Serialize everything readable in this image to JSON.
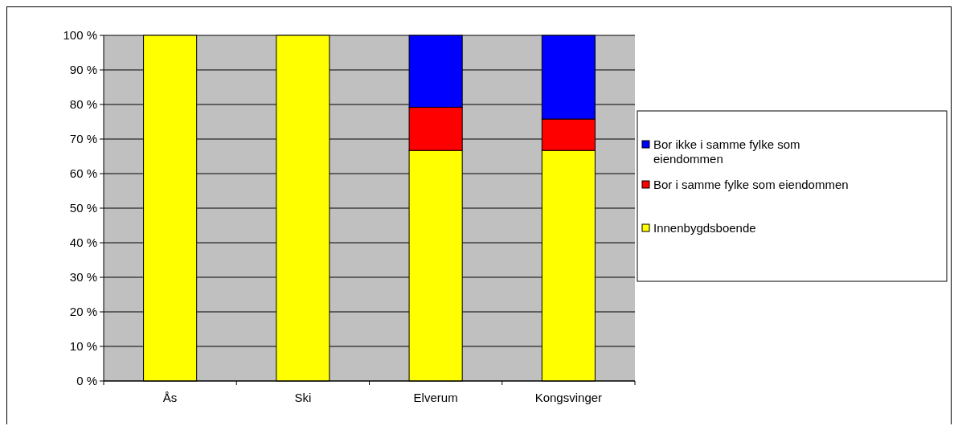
{
  "chart_data": {
    "type": "bar",
    "stacked": true,
    "categories": [
      "Ås",
      "Ski",
      "Elverum",
      "Kongsvinger"
    ],
    "series": [
      {
        "name": "Innenbygdsboende",
        "color": "#ffff00",
        "values": [
          100,
          100,
          66.7,
          66.7
        ]
      },
      {
        "name": "Bor i samme fylke som eiendommen",
        "color": "#ff0000",
        "values": [
          0,
          0,
          12.5,
          9.1
        ]
      },
      {
        "name": "Bor ikke i samme fylke som eiendommen",
        "color": "#0000ff",
        "values": [
          0,
          0,
          20.8,
          24.2
        ]
      }
    ],
    "ylim": [
      0,
      100
    ],
    "yticks": [
      {
        "value": 0,
        "label": "0 %"
      },
      {
        "value": 10,
        "label": "10 %"
      },
      {
        "value": 20,
        "label": "20 %"
      },
      {
        "value": 30,
        "label": "30 %"
      },
      {
        "value": 40,
        "label": "40 %"
      },
      {
        "value": 50,
        "label": "50 %"
      },
      {
        "value": 60,
        "label": "60 %"
      },
      {
        "value": 70,
        "label": "70 %"
      },
      {
        "value": 80,
        "label": "80 %"
      },
      {
        "value": 90,
        "label": "90 %"
      },
      {
        "value": 100,
        "label": "100 %"
      }
    ],
    "grid": "y",
    "legend": "right"
  }
}
